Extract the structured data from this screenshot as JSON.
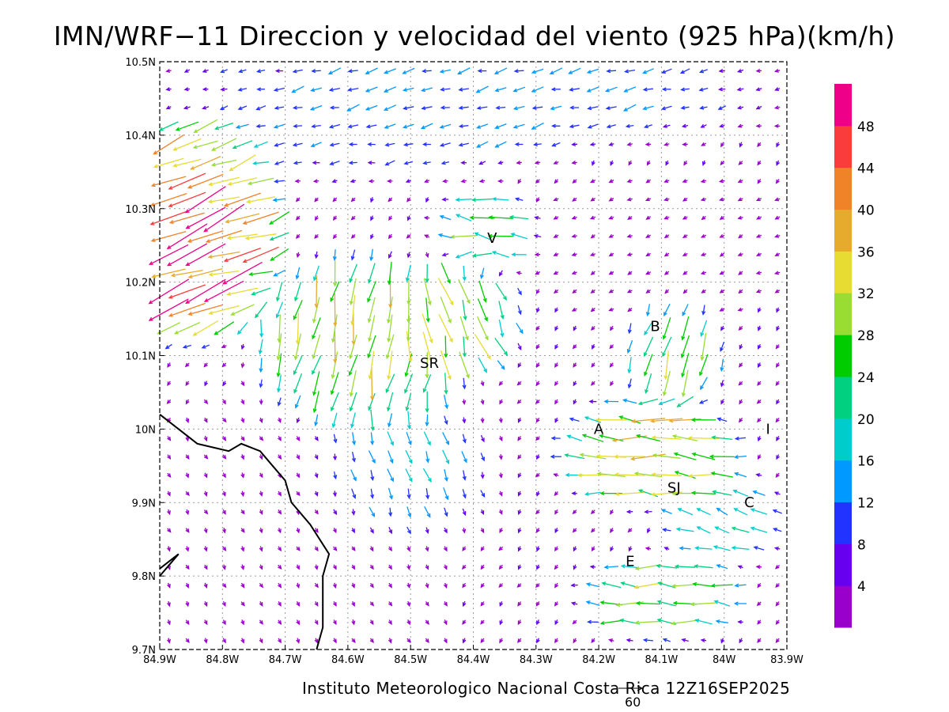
{
  "title": "IMN/WRF−11 Direccion y velocidad del viento (925 hPa)(km/h)",
  "footer": "Instituto Meteorologico Nacional Costa Rica 12Z16SEP2025",
  "reference_vector_label": "60",
  "chart_data": {
    "type": "vector-field",
    "variable": "wind direction and speed",
    "level": "925 hPa",
    "units": "km/h",
    "valid_time": "12Z16SEP2025",
    "xlim": [
      -84.9,
      -83.9
    ],
    "ylim": [
      9.7,
      10.5
    ],
    "x_ticks": [
      "84.9W",
      "84.8W",
      "84.7W",
      "84.6W",
      "84.5W",
      "84.4W",
      "84.3W",
      "84.2W",
      "84.1W",
      "84W",
      "83.9W"
    ],
    "y_ticks": [
      "10.5N",
      "10.4N",
      "10.3N",
      "10.2N",
      "10.1N",
      "10N",
      "9.9N",
      "9.8N",
      "9.7N"
    ],
    "grid": true,
    "reference_vector_kmh": 60,
    "colorbar": {
      "placement": "right",
      "labels": [
        "4",
        "8",
        "12",
        "16",
        "20",
        "24",
        "28",
        "32",
        "36",
        "40",
        "44",
        "48"
      ],
      "colors": [
        "#9900cc",
        "#6600ee",
        "#2233ff",
        "#0099ff",
        "#00cccc",
        "#00d080",
        "#00cc00",
        "#99dd33",
        "#e6dc32",
        "#e6aa2d",
        "#f08228",
        "#fa3c3c",
        "#ee0088"
      ]
    },
    "places": [
      {
        "label": "V",
        "lon": -84.37,
        "lat": 10.26
      },
      {
        "label": "SR",
        "lon": -84.47,
        "lat": 10.09
      },
      {
        "label": "B",
        "lon": -84.11,
        "lat": 10.14
      },
      {
        "label": "A",
        "lon": -84.2,
        "lat": 10.0
      },
      {
        "label": "SJ",
        "lon": -84.08,
        "lat": 9.92
      },
      {
        "label": "I",
        "lon": -83.93,
        "lat": 10.0
      },
      {
        "label": "C",
        "lon": -83.96,
        "lat": 9.9
      },
      {
        "label": "E",
        "lon": -84.15,
        "lat": 9.82
      }
    ],
    "coastline": [
      [
        -84.9,
        10.02
      ],
      [
        -84.84,
        9.98
      ],
      [
        -84.79,
        9.97
      ],
      [
        -84.77,
        9.98
      ],
      [
        -84.74,
        9.97
      ],
      [
        -84.72,
        9.95
      ],
      [
        -84.7,
        9.93
      ],
      [
        -84.69,
        9.9
      ],
      [
        -84.68,
        9.89
      ],
      [
        -84.66,
        9.87
      ],
      [
        -84.63,
        9.83
      ],
      [
        -84.64,
        9.8
      ],
      [
        -84.64,
        9.73
      ],
      [
        -84.65,
        9.7
      ]
    ],
    "coastline2": [
      [
        -84.9,
        9.81
      ],
      [
        -84.87,
        9.83
      ],
      [
        -84.9,
        9.8
      ]
    ],
    "wind_regions": [
      {
        "area": "NW corner",
        "lon": [
          -84.9,
          -84.75
        ],
        "lat": [
          10.15,
          10.4
        ],
        "direction": "from ENE",
        "speed_kmh": [
          36,
          48
        ]
      },
      {
        "area": "central (SR)",
        "lon": [
          -84.7,
          -84.4
        ],
        "lat": [
          10.0,
          10.2
        ],
        "direction": "from N",
        "speed_kmh": [
          24,
          40
        ]
      },
      {
        "area": "north strip",
        "lon": [
          -84.9,
          -83.9
        ],
        "lat": [
          10.4,
          10.5
        ],
        "direction": "from E/NE",
        "speed_kmh": [
          4,
          20
        ]
      },
      {
        "area": "Central Valley (A-SJ)",
        "lon": [
          -84.25,
          -83.95
        ],
        "lat": [
          9.9,
          10.05
        ],
        "direction": "from E",
        "speed_kmh": [
          24,
          40
        ]
      },
      {
        "area": "south-east (E)",
        "lon": [
          -84.2,
          -83.9
        ],
        "lat": [
          9.72,
          9.85
        ],
        "direction": "from E",
        "speed_kmh": [
          20,
          36
        ]
      },
      {
        "area": "south-west",
        "lon": [
          -84.9,
          -84.6
        ],
        "lat": [
          9.7,
          9.95
        ],
        "direction": "variable",
        "speed_kmh": [
          2,
          14
        ]
      }
    ]
  }
}
